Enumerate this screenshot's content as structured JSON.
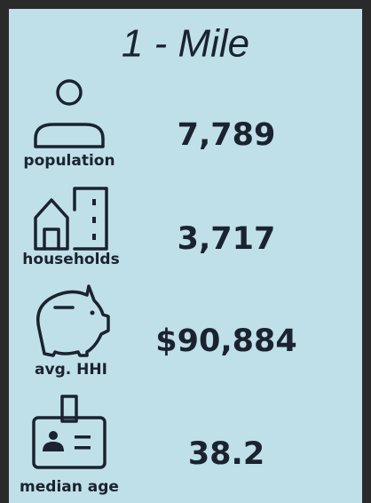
{
  "title": "1 - Mile",
  "stats": [
    {
      "label": "population",
      "value": "7,789"
    },
    {
      "label": "households",
      "value": "3,717"
    },
    {
      "label": "avg. HHI",
      "value": "$90,884"
    },
    {
      "label": "median age",
      "value": "38.2"
    }
  ]
}
